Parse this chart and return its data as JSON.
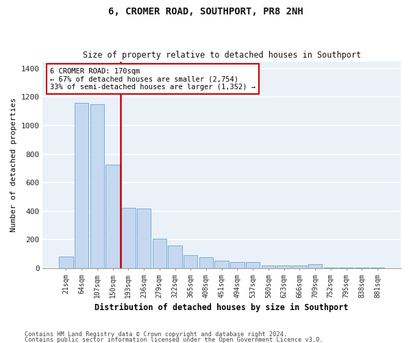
{
  "title": "6, CROMER ROAD, SOUTHPORT, PR8 2NH",
  "subtitle": "Size of property relative to detached houses in Southport",
  "xlabel": "Distribution of detached houses by size in Southport",
  "ylabel": "Number of detached properties",
  "bar_labels": [
    "21sqm",
    "64sqm",
    "107sqm",
    "150sqm",
    "193sqm",
    "236sqm",
    "279sqm",
    "322sqm",
    "365sqm",
    "408sqm",
    "451sqm",
    "494sqm",
    "537sqm",
    "580sqm",
    "623sqm",
    "666sqm",
    "709sqm",
    "752sqm",
    "795sqm",
    "838sqm",
    "881sqm"
  ],
  "bar_values": [
    80,
    1160,
    1150,
    725,
    420,
    415,
    205,
    155,
    90,
    75,
    52,
    42,
    40,
    20,
    18,
    18,
    25,
    5,
    5,
    5,
    5
  ],
  "bar_color": "#c5d8f0",
  "bar_edge_color": "#7aadd4",
  "background_color": "#eaf1f9",
  "grid_color": "#ffffff",
  "vline_color": "#cc0000",
  "annotation_text": "6 CROMER ROAD: 170sqm\n← 67% of detached houses are smaller (2,754)\n33% of semi-detached houses are larger (1,352) →",
  "annotation_box_color": "#cc0000",
  "ylim": [
    0,
    1450
  ],
  "yticks": [
    0,
    200,
    400,
    600,
    800,
    1000,
    1200,
    1400
  ],
  "footer_line1": "Contains HM Land Registry data © Crown copyright and database right 2024.",
  "footer_line2": "Contains public sector information licensed under the Open Government Licence v3.0."
}
